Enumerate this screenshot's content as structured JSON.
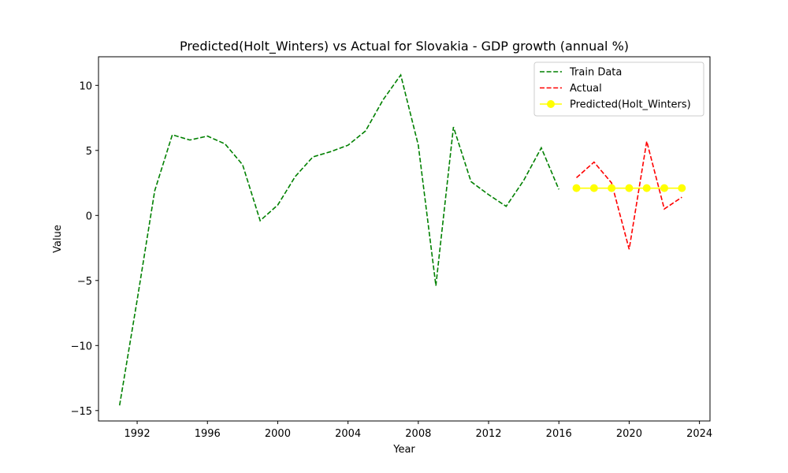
{
  "chart_data": {
    "type": "line",
    "title": "Predicted(Holt_Winters) vs Actual for Slovakia - GDP growth (annual %)",
    "xlabel": "Year",
    "ylabel": "Value",
    "xlim": [
      1989.8,
      2024.6
    ],
    "ylim": [
      -15.8,
      12.2
    ],
    "xticks": [
      1992,
      1996,
      2000,
      2004,
      2008,
      2012,
      2016,
      2020,
      2024
    ],
    "yticks": [
      -15,
      -10,
      -5,
      0,
      5,
      10
    ],
    "xtick_labels": [
      "1992",
      "1996",
      "2000",
      "2004",
      "2008",
      "2012",
      "2016",
      "2020",
      "2024"
    ],
    "ytick_labels": [
      "−15",
      "−10",
      "−5",
      "0",
      "5",
      "10"
    ],
    "grid": false,
    "legend_position": "upper right",
    "series": [
      {
        "name": "Train Data",
        "color": "#008000",
        "style": "dashed",
        "marker": "none",
        "x": [
          1991,
          1992,
          1993,
          1994,
          1995,
          1996,
          1997,
          1998,
          1999,
          2000,
          2001,
          2002,
          2003,
          2004,
          2005,
          2006,
          2007,
          2008,
          2009,
          2010,
          2011,
          2012,
          2013,
          2014,
          2015,
          2016
        ],
        "y": [
          -14.6,
          -6.5,
          1.9,
          6.2,
          5.8,
          6.1,
          5.5,
          3.9,
          -0.4,
          0.8,
          3.0,
          4.5,
          4.9,
          5.4,
          6.5,
          8.9,
          10.8,
          5.4,
          -5.4,
          6.8,
          2.6,
          1.6,
          0.7,
          2.7,
          5.2,
          2.0
        ]
      },
      {
        "name": "Actual",
        "color": "#ff0000",
        "style": "dashed",
        "marker": "none",
        "x": [
          2017,
          2018,
          2019,
          2020,
          2021,
          2022,
          2023
        ],
        "y": [
          2.9,
          4.1,
          2.5,
          -2.6,
          5.7,
          0.5,
          1.4
        ]
      },
      {
        "name": "Predicted(Holt_Winters)",
        "color": "#ffff00",
        "style": "solid",
        "marker": "circle",
        "x": [
          2017,
          2018,
          2019,
          2020,
          2021,
          2022,
          2023
        ],
        "y": [
          2.1,
          2.1,
          2.1,
          2.1,
          2.1,
          2.1,
          2.1
        ]
      }
    ]
  }
}
